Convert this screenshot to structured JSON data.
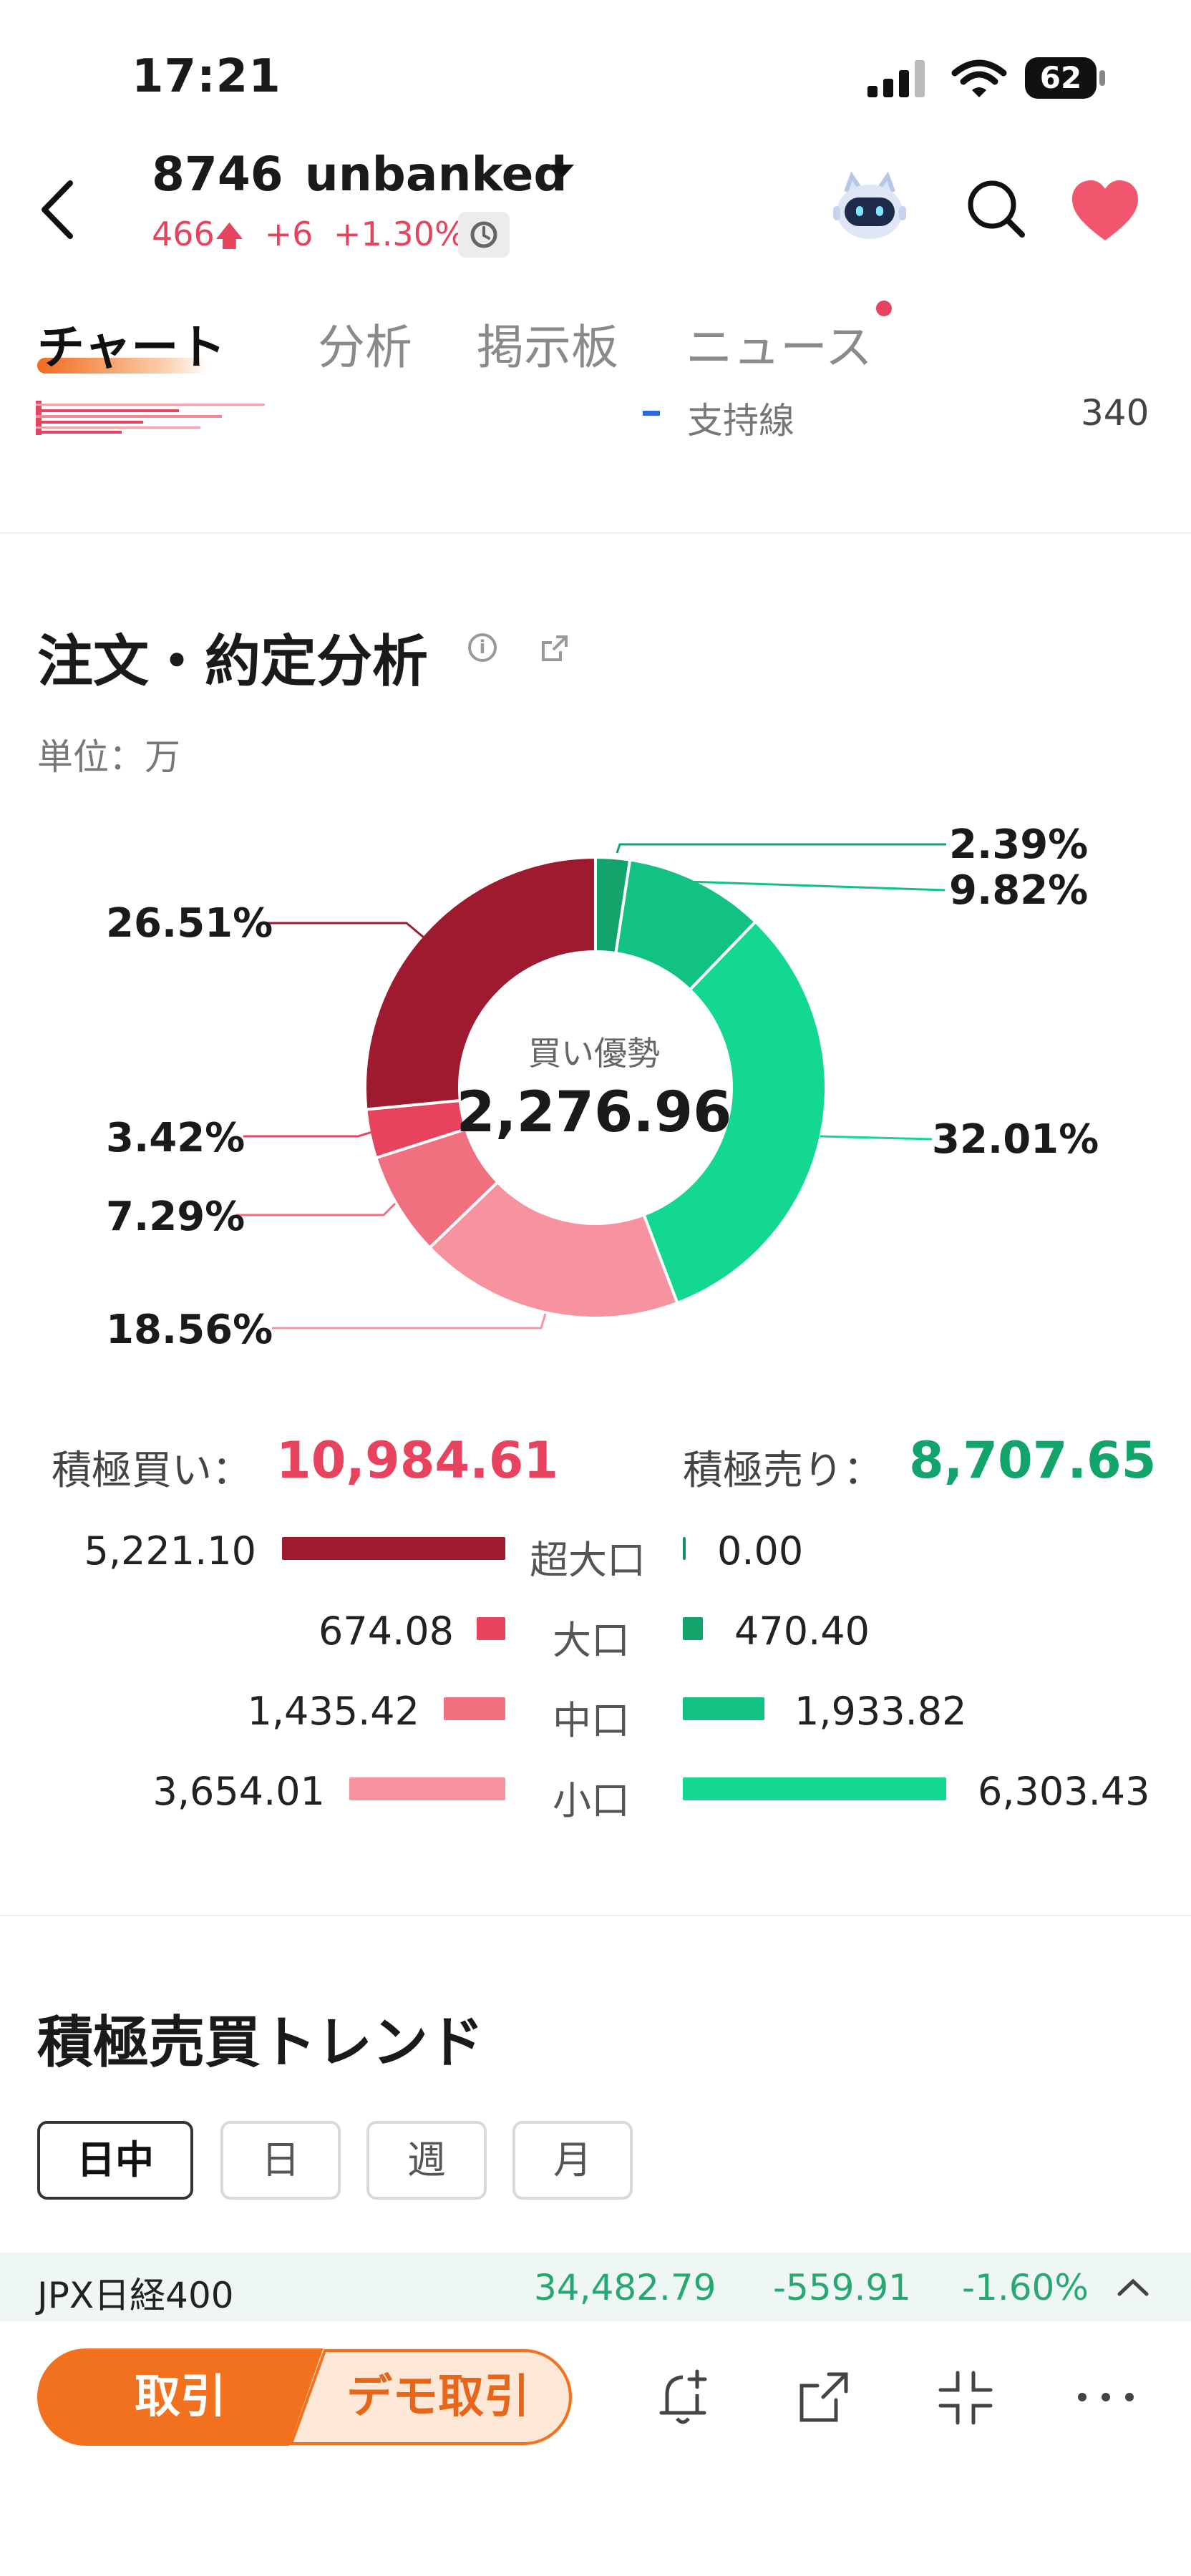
{
  "status_bar": {
    "time": "17:21",
    "battery": "62"
  },
  "header": {
    "code": "8746",
    "name": "unbanked",
    "quote": "466",
    "quote_arrow": "🡅",
    "change": "+6",
    "change_pct": "+1.30%"
  },
  "tabs": [
    {
      "label": "チャート",
      "active": true
    },
    {
      "label": "分析",
      "active": false
    },
    {
      "label": "掲示板",
      "active": false
    },
    {
      "label": "ニュース",
      "active": false
    }
  ],
  "support": {
    "label": "支持線",
    "value": "340"
  },
  "order_analysis": {
    "title": "注文・約定分析",
    "unit": "単位：万",
    "center_label": "買い優勢",
    "center_value": "2,276.96",
    "colors": {
      "buy_super": "#9e1b2f",
      "buy_large": "#e8435e",
      "buy_mid": "#f0707f",
      "buy_small": "#f7939f",
      "sell_super": "#12915f",
      "sell_large": "#12a46b",
      "sell_mid": "#12c283",
      "sell_small": "#13d88f"
    },
    "pcts": {
      "sell_large": "2.39%",
      "sell_mid": "9.82%",
      "sell_small": "32.01%",
      "buy_super": "26.51%",
      "buy_large": "3.42%",
      "buy_mid": "7.29%",
      "buy_small": "18.56%"
    },
    "active_buy_label": "積極買い：",
    "active_buy_value": "10,984.61",
    "active_sell_label": "積極売り：",
    "active_sell_value": "8,707.65",
    "rows": [
      {
        "category": "超大口",
        "buy": "5,221.10",
        "sell": "0.00"
      },
      {
        "category": "大口",
        "buy": "674.08",
        "sell": "470.40"
      },
      {
        "category": "中口",
        "buy": "1,435.42",
        "sell": "1,933.82"
      },
      {
        "category": "小口",
        "buy": "3,654.01",
        "sell": "6,303.43"
      }
    ]
  },
  "chart_data": {
    "type": "pie",
    "labels": [
      "2.39%",
      "9.82%",
      "32.01%",
      "18.56%",
      "7.29%",
      "3.42%",
      "26.51%"
    ],
    "values": [
      2.39,
      9.82,
      32.01,
      18.56,
      7.29,
      3.42,
      26.51
    ],
    "center_label": "買い優勢",
    "center_value": "2,276.96"
  },
  "trend": {
    "title": "積極売買トレンド",
    "chips": [
      "日中",
      "日",
      "週",
      "月"
    ]
  },
  "index_ticker": {
    "name": "JPX日経400",
    "value": "34,482.79",
    "change": "-559.91",
    "change_pct": "-1.60%"
  },
  "bottom_bar": {
    "trade_label": "取引",
    "demo_label": "デモ取引"
  }
}
